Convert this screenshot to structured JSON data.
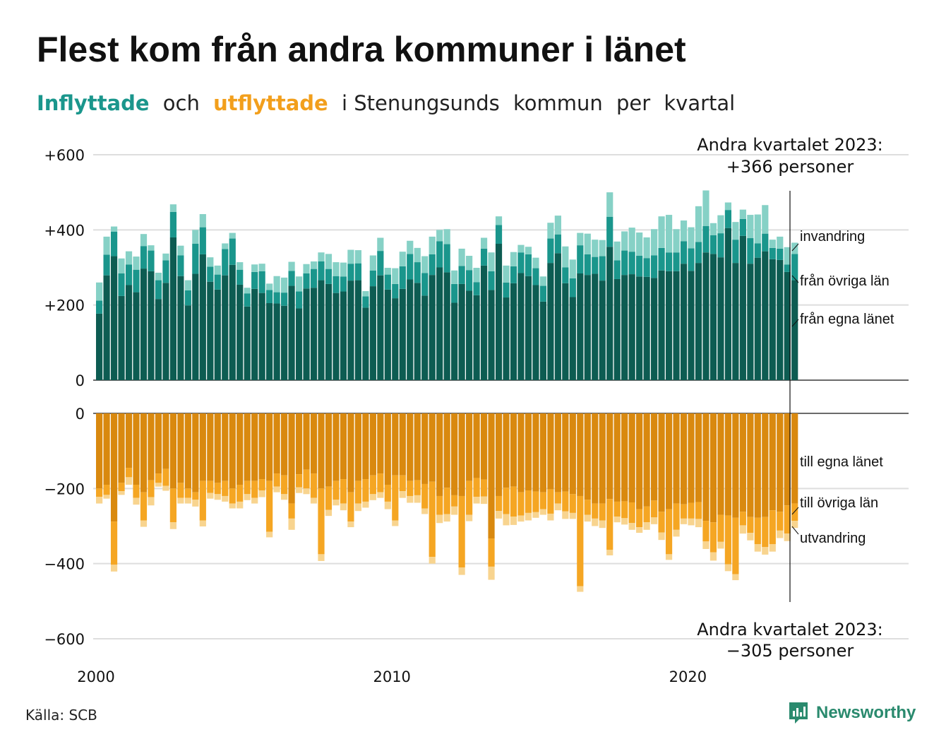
{
  "title": "Flest kom från andra kommuner i länet",
  "subtitle": {
    "part1": "Inflyttade",
    "part2": "och",
    "part3": "utflyttade",
    "part4": "i Stenungsunds",
    "part5": "kommun",
    "part6": "per",
    "part7": "kvartal"
  },
  "annotation_top": {
    "line1": "Andra kvartalet 2023:",
    "line2": "+366 personer"
  },
  "annotation_bottom": {
    "line1": "Andra kvartalet 2023:",
    "line2": "−305 personer"
  },
  "series_labels_top": [
    "invandring",
    "från övriga län",
    "från egna länet"
  ],
  "series_labels_bottom": [
    "till egna länet",
    "till övriga län",
    "utvandring"
  ],
  "source": "Källa: SCB",
  "brand": "Newsworthy",
  "colors": {
    "in_egna": "#0d5c52",
    "in_ovriga": "#1a968c",
    "in_invandring": "#86d1c6",
    "ut_egna": "#d9890f",
    "ut_ovriga": "#f5a623",
    "ut_utvandring": "#f8d48f",
    "brand": "#2a8a6e"
  },
  "chart_data": [
    {
      "type": "bar",
      "stacked": true,
      "x_unit": "quarter",
      "x_start": "2000 Q1",
      "x_end": "2023 Q2",
      "x_ticks": [
        "2000",
        "2010",
        "2020"
      ],
      "y_ticks": [
        "+600",
        "+400",
        "+200",
        "0"
      ],
      "ylim": [
        0,
        600
      ],
      "series": [
        {
          "name": "från egna länet",
          "values": [
            177,
            279,
            330,
            224,
            253,
            234,
            297,
            290,
            216,
            259,
            380,
            277,
            199,
            283,
            335,
            262,
            241,
            279,
            307,
            254,
            196,
            243,
            232,
            205,
            204,
            198,
            251,
            191,
            244,
            246,
            266,
            256,
            232,
            236,
            265,
            266,
            193,
            250,
            279,
            241,
            218,
            243,
            268,
            259,
            225,
            280,
            300,
            287,
            206,
            256,
            238,
            226,
            305,
            240,
            363,
            220,
            258,
            285,
            277,
            253,
            209,
            312,
            338,
            258,
            221,
            284,
            280,
            283,
            265,
            355,
            269,
            280,
            282,
            276,
            275,
            272,
            292,
            290,
            290,
            310,
            291,
            312,
            340,
            336,
            327,
            405,
            312,
            384,
            310,
            326,
            343,
            322,
            320,
            288,
            266
          ]
        },
        {
          "name": "från övriga län",
          "values": [
            35,
            55,
            65,
            60,
            55,
            60,
            60,
            55,
            50,
            60,
            68,
            55,
            40,
            80,
            72,
            40,
            40,
            70,
            70,
            40,
            35,
            45,
            58,
            35,
            30,
            35,
            40,
            45,
            40,
            50,
            50,
            40,
            45,
            40,
            45,
            45,
            30,
            42,
            65,
            40,
            38,
            60,
            68,
            55,
            60,
            55,
            70,
            75,
            50,
            48,
            55,
            35,
            45,
            50,
            50,
            40,
            45,
            55,
            58,
            45,
            42,
            65,
            50,
            42,
            50,
            75,
            55,
            45,
            65,
            80,
            50,
            65,
            60,
            55,
            50,
            60,
            60,
            50,
            50,
            60,
            60,
            56,
            70,
            50,
            64,
            48,
            62,
            45,
            68,
            38,
            47,
            30,
            30,
            20,
            70
          ]
        },
        {
          "name": "invandring",
          "values": [
            48,
            48,
            14,
            40,
            35,
            35,
            32,
            14,
            20,
            18,
            20,
            26,
            27,
            37,
            35,
            25,
            24,
            15,
            15,
            20,
            15,
            20,
            20,
            17,
            43,
            40,
            24,
            40,
            25,
            20,
            24,
            40,
            37,
            37,
            37,
            35,
            14,
            40,
            35,
            18,
            42,
            39,
            35,
            38,
            45,
            47,
            30,
            40,
            36,
            46,
            38,
            38,
            29,
            50,
            23,
            45,
            38,
            20,
            20,
            28,
            25,
            42,
            50,
            56,
            50,
            33,
            55,
            46,
            43,
            65,
            50,
            51,
            64,
            62,
            55,
            70,
            84,
            100,
            62,
            55,
            56,
            95,
            95,
            32,
            48,
            20,
            47,
            25,
            62,
            77,
            76,
            22,
            32,
            46,
            30
          ]
        }
      ]
    },
    {
      "type": "bar",
      "stacked": true,
      "x_unit": "quarter",
      "x_start": "2000 Q1",
      "x_end": "2023 Q2",
      "x_ticks": [
        "2000",
        "2010",
        "2020"
      ],
      "y_ticks": [
        "0",
        "−200",
        "−400",
        "−600"
      ],
      "ylim": [
        -600,
        0
      ],
      "series": [
        {
          "name": "till egna länet",
          "values": [
            -200,
            -190,
            -288,
            -185,
            -145,
            -190,
            -210,
            -178,
            -160,
            -148,
            -200,
            -185,
            -200,
            -210,
            -180,
            -180,
            -185,
            -180,
            -200,
            -190,
            -180,
            -180,
            -175,
            -180,
            -160,
            -165,
            -240,
            -162,
            -150,
            -160,
            -200,
            -195,
            -180,
            -175,
            -210,
            -180,
            -175,
            -165,
            -160,
            -190,
            -165,
            -165,
            -180,
            -178,
            -188,
            -182,
            -220,
            -198,
            -218,
            -220,
            -180,
            -172,
            -176,
            -333,
            -220,
            -198,
            -195,
            -210,
            -205,
            -208,
            -210,
            -202,
            -210,
            -208,
            -215,
            -220,
            -230,
            -240,
            -240,
            -228,
            -235,
            -234,
            -237,
            -255,
            -248,
            -232,
            -262,
            -255,
            -240,
            -242,
            -238,
            -236,
            -286,
            -290,
            -270,
            -272,
            -278,
            -262,
            -276,
            -278,
            -276,
            -258,
            -262,
            -245,
            -240
          ]
        },
        {
          "name": "till övriga län",
          "values": [
            -22,
            -27,
            -115,
            -22,
            -25,
            -35,
            -75,
            -45,
            -25,
            -45,
            -90,
            -40,
            -25,
            -20,
            -105,
            -32,
            -30,
            -40,
            -40,
            -45,
            -35,
            -45,
            -30,
            -135,
            -35,
            -50,
            -40,
            -35,
            -50,
            -65,
            -175,
            -62,
            -50,
            -65,
            -78,
            -60,
            -60,
            -50,
            -50,
            -45,
            -120,
            -42,
            -40,
            -40,
            -65,
            -200,
            -50,
            -70,
            -30,
            -190,
            -90,
            -50,
            -45,
            -75,
            -40,
            -70,
            -80,
            -62,
            -60,
            -55,
            -45,
            -65,
            -30,
            -53,
            -50,
            -240,
            -40,
            -40,
            -45,
            -135,
            -40,
            -45,
            -55,
            -48,
            -42,
            -45,
            -55,
            -120,
            -70,
            -38,
            -42,
            -45,
            -55,
            -80,
            -72,
            -130,
            -150,
            -36,
            -42,
            -70,
            -80,
            -90,
            -50,
            -75,
            -46
          ]
        },
        {
          "name": "utvandring",
          "values": [
            -18,
            -10,
            -18,
            -10,
            -20,
            -18,
            -17,
            -22,
            -10,
            -13,
            -18,
            -15,
            -15,
            -18,
            -16,
            -15,
            -15,
            -15,
            -13,
            -18,
            -16,
            -15,
            -18,
            -15,
            -15,
            -15,
            -30,
            -15,
            -15,
            -15,
            -18,
            -16,
            -15,
            -18,
            -15,
            -20,
            -16,
            -16,
            -15,
            -20,
            -15,
            -18,
            -18,
            -20,
            -15,
            -18,
            -22,
            -20,
            -22,
            -20,
            -17,
            -18,
            -20,
            -35,
            -20,
            -30,
            -22,
            -16,
            -20,
            -15,
            -15,
            -18,
            -18,
            -20,
            -16,
            -15,
            -18,
            -20,
            -20,
            -15,
            -15,
            -17,
            -18,
            -15,
            -20,
            -18,
            -20,
            -15,
            -18,
            -15,
            -18,
            -22,
            -20,
            -22,
            -18,
            -18,
            -16,
            -22,
            -20,
            -20,
            -20,
            -20,
            -20,
            -20,
            -19
          ]
        }
      ]
    }
  ]
}
